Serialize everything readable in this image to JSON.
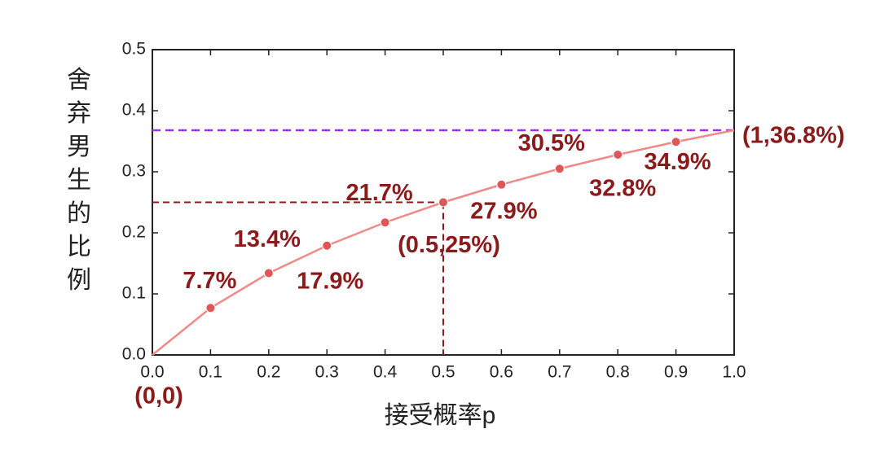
{
  "chart_data": {
    "type": "line",
    "xlabel": "接受概率p",
    "ylabel": "舍弃男生的比例",
    "x": [
      0,
      0.1,
      0.2,
      0.3,
      0.4,
      0.5,
      0.6,
      0.7,
      0.8,
      0.9,
      1
    ],
    "series": [
      {
        "color": "#f08a8a",
        "marker_color": "#e05555",
        "values": [
          0,
          0.077,
          0.134,
          0.179,
          0.217,
          0.25,
          0.279,
          0.305,
          0.328,
          0.349,
          0.368
        ],
        "value_labels": [
          null,
          "7.7%",
          "13.4%",
          "17.9%",
          "21.7%",
          null,
          "27.9%",
          "30.5%",
          "32.8%",
          "34.9%",
          null
        ]
      }
    ],
    "label_color": "#8b1a1a",
    "hlines": [
      {
        "value": 0.368,
        "color": "#9b30ff"
      }
    ],
    "annotations": [
      {
        "text": "(0,0)",
        "x": 0,
        "y": 0
      },
      {
        "text": "(0.5,25%)",
        "x": 0.5,
        "y": 0.25,
        "guides": true,
        "color": "#8b1a1a"
      },
      {
        "text": "(1,36.8%)",
        "x": 1,
        "y": 0.368
      }
    ],
    "xlim": [
      0,
      1
    ],
    "ylim": [
      0,
      0.5
    ],
    "xticks": [
      {
        "value": 0,
        "label": "0.0"
      },
      0.1,
      0.2,
      0.3,
      0.4,
      0.5,
      0.6,
      0.7,
      0.8,
      0.9,
      {
        "value": 1,
        "label": "1.0"
      }
    ],
    "yticks": [
      {
        "value": 0,
        "label": "0.0"
      },
      0.1,
      0.2,
      0.3,
      0.4,
      0.5
    ]
  }
}
